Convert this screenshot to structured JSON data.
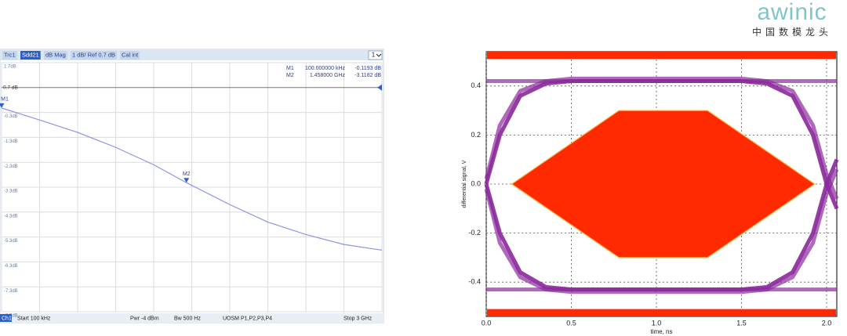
{
  "logo": {
    "brand": "awinic",
    "tagline": "中国数模龙头"
  },
  "chart_data": [
    {
      "type": "line",
      "trace": "Trc1",
      "format": "dB Mag",
      "scale": "1 dB/ Ref 0.7 dB",
      "cal": "Cal int",
      "channel_menu": "1",
      "ref_label": "0.7 dB",
      "ref_value": 0.7,
      "x": [
        0,
        0.3,
        0.6,
        0.9,
        1.2,
        1.458,
        1.8,
        2.1,
        2.4,
        2.7,
        3.0
      ],
      "series": [
        {
          "name": "Sdd21",
          "color": "#8f93e6",
          "values": [
            -0.12,
            -0.6,
            -1.1,
            -1.7,
            -2.4,
            -3.1182,
            -4.0,
            -4.7,
            -5.2,
            -5.6,
            -5.83
          ]
        }
      ],
      "markers": [
        {
          "name": "M1",
          "x": 0.0001,
          "y": -0.1193,
          "x_label": "100.000000  kHz",
          "y_label": "-0.1193  dB"
        },
        {
          "name": "M2",
          "x": 1.458,
          "y": -3.1182,
          "x_label": "1.458000  GHz",
          "y_label": "-3.1182  dB"
        }
      ],
      "footer": {
        "channel": "Ch1",
        "start": "Start   100 kHz",
        "power": "Pwr   -4 dBm",
        "bandwidth": "Bw   500 Hz",
        "cal_ports": "UOSM P1,P2,P3,P4",
        "stop": "Stop   3 GHz"
      },
      "xlim": [
        0,
        3
      ],
      "xticks": [
        0,
        0.3,
        0.6,
        0.9,
        1.2,
        1.5,
        1.8,
        2.1,
        2.4,
        2.7,
        3
      ],
      "ylim": [
        -8.3,
        1.7
      ],
      "yticks": [
        {
          "value": 1.7,
          "label": "1.7dB"
        },
        {
          "value": -0.3,
          "label": "-0.3dB"
        },
        {
          "value": -1.3,
          "label": "-1.3dB"
        },
        {
          "value": -2.3,
          "label": "-2.3dB"
        },
        {
          "value": -3.3,
          "label": "-3.3dB"
        },
        {
          "value": -4.3,
          "label": "-4.3dB"
        },
        {
          "value": -5.3,
          "label": "-5.3dB"
        },
        {
          "value": -6.3,
          "label": "-6.3dB"
        },
        {
          "value": -7.3,
          "label": "-7.3dB"
        },
        {
          "value": -8.3,
          "label": "-8.3dB"
        }
      ],
      "grid": true
    },
    {
      "type": "eye",
      "xlabel": "time, ns",
      "ylabel": "differential signal, V",
      "xlim": [
        0,
        2.06
      ],
      "ylim": [
        -0.54,
        0.54
      ],
      "xticks": [
        {
          "value": 0,
          "label": "0.0"
        },
        0.5,
        {
          "value": 1,
          "label": "1.0"
        },
        1.5,
        {
          "value": 2,
          "label": "2.0"
        }
      ],
      "yticks": [
        -0.4,
        -0.2,
        {
          "value": 0,
          "label": "0.0"
        },
        0.2,
        0.4
      ],
      "grid": true,
      "trace_color": "#8b2a9c",
      "x": [
        0,
        0.08,
        0.2,
        0.35,
        0.5,
        1.5,
        1.65,
        1.8,
        1.92,
        2.0,
        2.06
      ],
      "traces": [
        {
          "values": [
            0,
            0.2,
            0.36,
            0.41,
            0.42,
            0.42,
            0.41,
            0.36,
            0.2,
            0,
            -0.1
          ]
        },
        {
          "values": [
            0,
            -0.2,
            -0.36,
            -0.42,
            -0.43,
            -0.43,
            -0.42,
            -0.36,
            -0.2,
            0,
            0.1
          ]
        },
        {
          "values": [
            0,
            0.2,
            0.36,
            0.41,
            0.42,
            0.42,
            0.42,
            0.42,
            0.42,
            0.42,
            0.42
          ]
        },
        {
          "values": [
            0,
            -0.2,
            -0.36,
            -0.42,
            -0.43,
            -0.43,
            -0.43,
            -0.43,
            -0.43,
            -0.43,
            -0.43
          ]
        },
        {
          "values": [
            0.42,
            0.42,
            0.42,
            0.42,
            0.42,
            0.42,
            0.41,
            0.36,
            0.2,
            0,
            -0.1
          ]
        },
        {
          "values": [
            -0.43,
            -0.43,
            -0.43,
            -0.43,
            -0.43,
            -0.43,
            -0.42,
            -0.36,
            -0.2,
            0,
            0.1
          ]
        },
        {
          "values": [
            0.02,
            0.24,
            0.38,
            0.42,
            0.43,
            0.43,
            0.42,
            0.38,
            0.24,
            0.04,
            -0.06
          ]
        },
        {
          "values": [
            -0.02,
            -0.24,
            -0.38,
            -0.43,
            -0.44,
            -0.44,
            -0.43,
            -0.38,
            -0.24,
            -0.04,
            0.06
          ]
        }
      ],
      "mask": {
        "color": "#ff2a00",
        "x": [
          0.15,
          0.78,
          1.3,
          1.93,
          1.3,
          0.78
        ],
        "y": [
          0,
          0.3,
          0.3,
          0,
          -0.3,
          -0.3
        ],
        "limits": [
          0.51,
          -0.51
        ]
      }
    }
  ]
}
